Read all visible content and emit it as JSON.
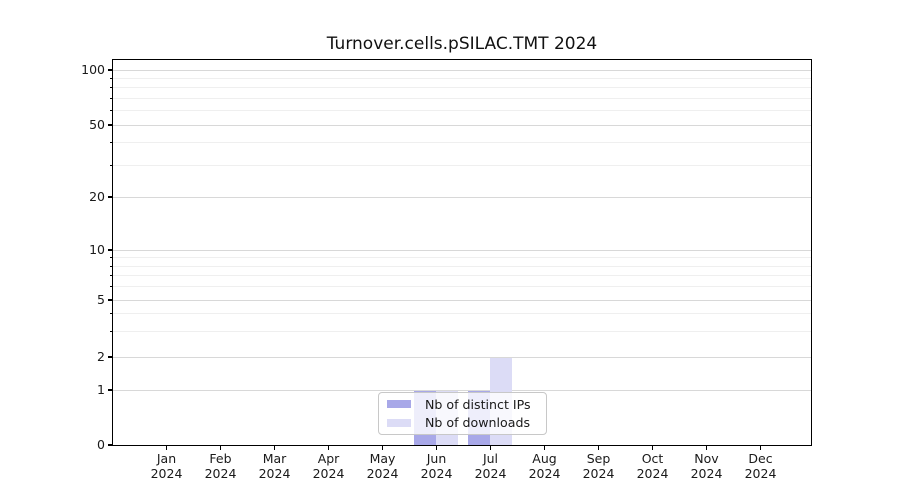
{
  "title": "Turnover.cells.pSILAC.TMT 2024",
  "chart_data": {
    "type": "bar",
    "title": "Turnover.cells.pSILAC.TMT 2024",
    "categories": [
      "Jan 2024",
      "Feb 2024",
      "Mar 2024",
      "Apr 2024",
      "May 2024",
      "Jun 2024",
      "Jul 2024",
      "Aug 2024",
      "Sep 2024",
      "Oct 2024",
      "Nov 2024",
      "Dec 2024"
    ],
    "series": [
      {
        "name": "Nb of distinct IPs",
        "color": "#a8a8e8",
        "values": [
          0,
          0,
          0,
          0,
          0,
          1,
          1,
          0,
          0,
          0,
          0,
          0
        ]
      },
      {
        "name": "Nb of downloads",
        "color": "#dcdcf6",
        "values": [
          0,
          0,
          0,
          0,
          0,
          1,
          2,
          0,
          0,
          0,
          0,
          0
        ]
      }
    ],
    "xlabel": "",
    "ylabel": "",
    "y_axis": {
      "scale": "log-like",
      "major_ticks": [
        0,
        1,
        2,
        5,
        10,
        20,
        50,
        100
      ],
      "minor_gridlines": [
        3,
        4,
        6,
        7,
        8,
        9,
        30,
        40,
        60,
        70,
        80,
        90
      ],
      "ylim": [
        0,
        115
      ]
    },
    "legend": {
      "position": "inside-bottom-center"
    },
    "grid": true,
    "colors": {
      "major_grid": "#d8d8d8",
      "minor_grid": "#efefef",
      "axis": "#000000",
      "text": "#1a1a1a"
    }
  }
}
